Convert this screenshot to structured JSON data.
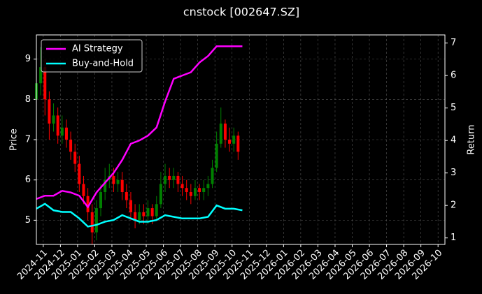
{
  "chart_data": {
    "type": "candlestick",
    "title": "cnstock [002647.SZ]",
    "ylabel": "Price",
    "y2label": "Return",
    "xlim": [
      -0.4,
      23.4
    ],
    "xticks": [
      {
        "value": 0,
        "label": "2024-11"
      },
      {
        "value": 1,
        "label": "2024-12"
      },
      {
        "value": 2,
        "label": "2025-01"
      },
      {
        "value": 3,
        "label": "2025-02"
      },
      {
        "value": 4,
        "label": "2025-03"
      },
      {
        "value": 5,
        "label": "2025-04"
      },
      {
        "value": 6,
        "label": "2025-05"
      },
      {
        "value": 7,
        "label": "2025-06"
      },
      {
        "value": 8,
        "label": "2025-07"
      },
      {
        "value": 9,
        "label": "2025-08"
      },
      {
        "value": 10,
        "label": "2025-09"
      },
      {
        "value": 11,
        "label": "2025-10"
      },
      {
        "value": 12,
        "label": "2025-11"
      },
      {
        "value": 13,
        "label": "2025-12"
      },
      {
        "value": 14,
        "label": "2026-01"
      },
      {
        "value": 15,
        "label": "2026-02"
      },
      {
        "value": 16,
        "label": "2026-03"
      },
      {
        "value": 17,
        "label": "2026-04"
      },
      {
        "value": 18,
        "label": "2026-05"
      },
      {
        "value": 19,
        "label": "2026-06"
      },
      {
        "value": 20,
        "label": "2026-07"
      },
      {
        "value": 21,
        "label": "2026-08"
      },
      {
        "value": 22,
        "label": "2026-09"
      },
      {
        "value": 23,
        "label": "2026-10"
      }
    ],
    "ylim": [
      4.4,
      9.6
    ],
    "yticks": [
      5,
      6,
      7,
      8,
      9
    ],
    "y2lim": [
      0.8,
      7.25
    ],
    "y2ticks": [
      1,
      2,
      3,
      4,
      5,
      6,
      7
    ],
    "grid": true,
    "legend": "upper left",
    "up_color": "#008000",
    "down_color": "#ff0000",
    "candles": {
      "x": [
        -0.4,
        -0.15,
        0.1,
        0.35,
        0.6,
        0.85,
        1.1,
        1.35,
        1.6,
        1.85,
        2.1,
        2.35,
        2.6,
        2.85,
        3.1,
        3.35,
        3.6,
        3.85,
        4.1,
        4.35,
        4.6,
        4.85,
        5.1,
        5.35,
        5.6,
        5.85,
        6.1,
        6.35,
        6.6,
        6.85,
        7.1,
        7.35,
        7.6,
        7.85,
        8.1,
        8.35,
        8.6,
        8.85,
        9.1,
        9.35,
        9.6,
        9.85,
        10.1,
        10.35,
        10.6,
        10.85,
        11.1,
        11.35
      ],
      "open": [
        8.0,
        8.4,
        8.8,
        8.0,
        7.4,
        7.6,
        7.1,
        7.3,
        7.0,
        6.7,
        6.4,
        5.9,
        5.6,
        5.2,
        4.7,
        5.3,
        5.7,
        6.0,
        6.1,
        5.9,
        6.0,
        5.7,
        5.5,
        5.2,
        5.0,
        5.2,
        5.1,
        5.3,
        5.1,
        5.4,
        5.9,
        6.1,
        6.0,
        6.1,
        5.9,
        5.8,
        5.7,
        5.6,
        5.8,
        5.7,
        5.8,
        5.9,
        6.3,
        6.9,
        7.4,
        7.0,
        6.9,
        7.1
      ],
      "high": [
        8.7,
        9.3,
        9.0,
        8.2,
        7.9,
        7.8,
        7.6,
        7.5,
        7.2,
        6.9,
        6.6,
        6.1,
        5.8,
        5.4,
        5.5,
        5.9,
        6.3,
        6.4,
        6.3,
        6.2,
        6.2,
        5.9,
        5.7,
        5.4,
        5.4,
        5.4,
        5.5,
        5.4,
        5.6,
        6.2,
        6.4,
        6.3,
        6.3,
        6.2,
        6.1,
        6.0,
        5.9,
        6.0,
        5.9,
        6.0,
        6.1,
        6.5,
        7.2,
        7.8,
        7.5,
        7.3,
        7.3,
        7.2
      ],
      "low": [
        7.0,
        8.1,
        7.6,
        7.0,
        7.2,
        6.9,
        6.9,
        6.8,
        6.5,
        6.2,
        5.7,
        5.4,
        5.0,
        4.4,
        4.5,
        5.1,
        5.5,
        5.8,
        5.7,
        5.7,
        5.5,
        5.3,
        5.0,
        4.8,
        4.9,
        4.9,
        4.9,
        4.9,
        5.0,
        5.3,
        5.7,
        5.8,
        5.8,
        5.7,
        5.6,
        5.5,
        5.4,
        5.5,
        5.5,
        5.5,
        5.6,
        5.8,
        6.2,
        6.8,
        6.8,
        6.7,
        6.7,
        6.5
      ],
      "close": [
        8.4,
        8.8,
        8.0,
        7.4,
        7.6,
        7.1,
        7.3,
        7.0,
        6.7,
        6.4,
        5.9,
        5.6,
        5.2,
        4.7,
        5.3,
        5.7,
        6.0,
        6.1,
        5.9,
        6.0,
        5.7,
        5.5,
        5.2,
        5.0,
        5.2,
        5.1,
        5.3,
        5.1,
        5.4,
        5.9,
        6.1,
        6.0,
        6.1,
        5.9,
        5.8,
        5.7,
        5.6,
        5.8,
        5.7,
        5.8,
        5.9,
        6.3,
        6.9,
        7.4,
        7.0,
        6.9,
        7.1,
        6.7
      ]
    },
    "line_x": [
      -0.4,
      0.1,
      0.6,
      1.1,
      1.6,
      2.1,
      2.6,
      3.1,
      3.6,
      4.1,
      4.6,
      5.1,
      5.6,
      6.1,
      6.6,
      7.1,
      7.6,
      8.1,
      8.6,
      9.1,
      9.6,
      10.1,
      10.6,
      11.1,
      11.6
    ],
    "series": [
      {
        "name": "AI Strategy",
        "color": "#ff00ff",
        "axis": "y2",
        "values": [
          2.2,
          2.3,
          2.3,
          2.45,
          2.4,
          2.3,
          1.95,
          2.4,
          2.7,
          3.0,
          3.4,
          3.9,
          4.0,
          4.15,
          4.4,
          5.2,
          5.9,
          6.0,
          6.1,
          6.4,
          6.6,
          6.9,
          6.9,
          6.9,
          6.9
        ]
      },
      {
        "name": "Buy-and-Hold",
        "color": "#00ffff",
        "axis": "y2",
        "values": [
          1.9,
          2.05,
          1.85,
          1.8,
          1.8,
          1.6,
          1.35,
          1.4,
          1.5,
          1.55,
          1.7,
          1.6,
          1.5,
          1.5,
          1.55,
          1.7,
          1.65,
          1.6,
          1.6,
          1.6,
          1.65,
          2.0,
          1.9,
          1.9,
          1.85
        ]
      }
    ]
  }
}
